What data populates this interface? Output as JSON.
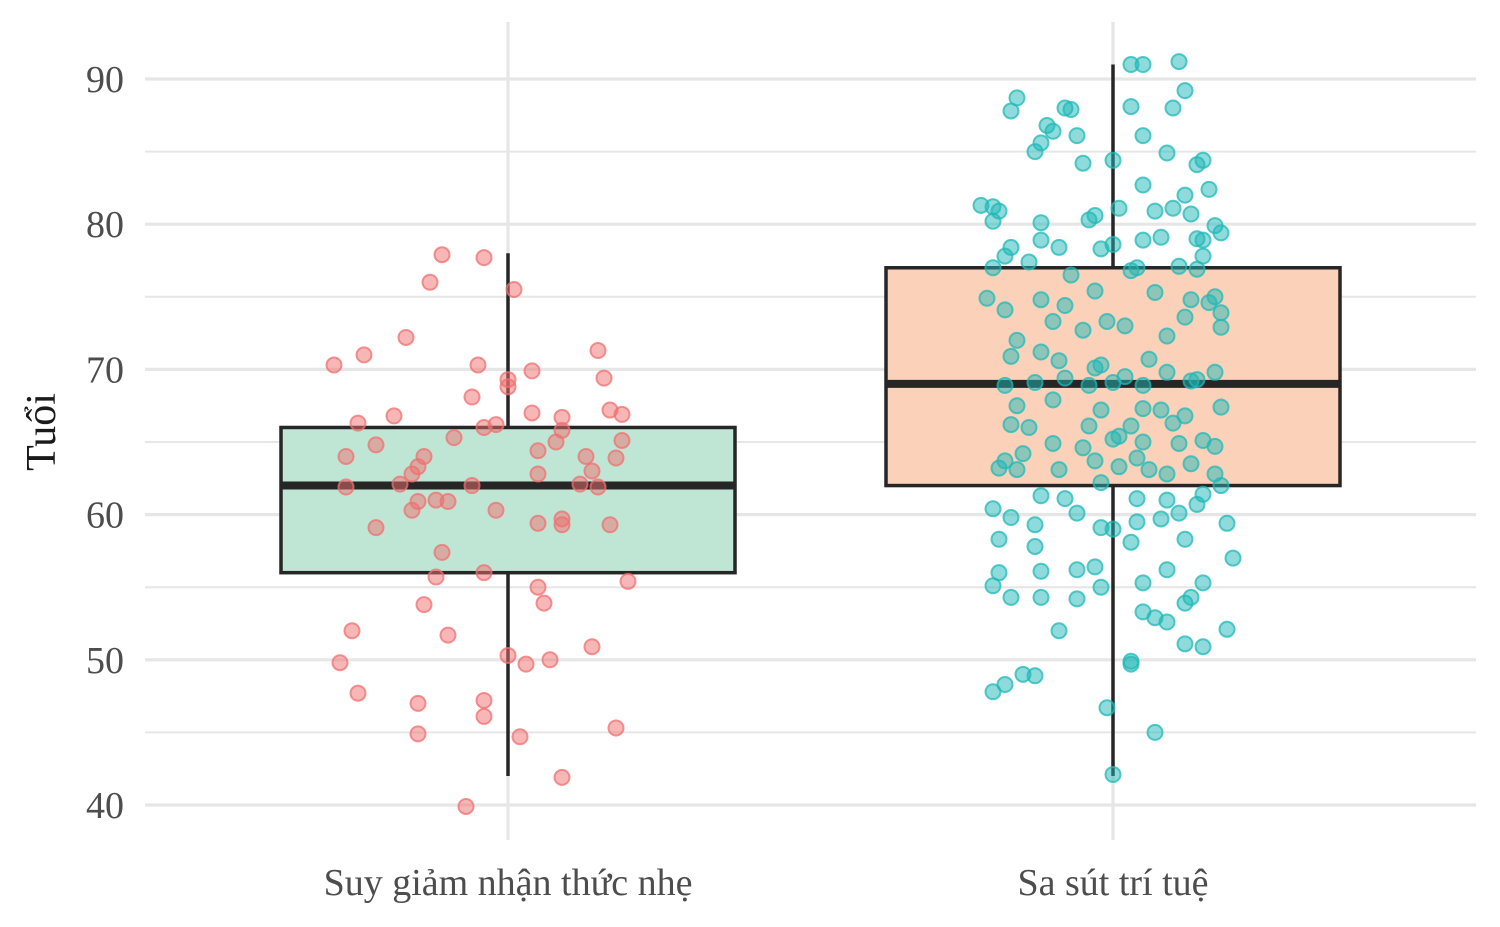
{
  "chart_data": {
    "type": "boxplot",
    "xlabel": "",
    "ylabel": "Tuổi",
    "ylim": [
      38,
      94
    ],
    "yticks": [
      40,
      50,
      60,
      70,
      80,
      90
    ],
    "grid": true,
    "legend": "none",
    "categories": [
      "Suy giảm nhận thức nhẹ",
      "Sa sút trí tuệ"
    ],
    "series": [
      {
        "box": {
          "min": 42,
          "q1": 56,
          "median": 62,
          "q3": 66,
          "max": 78
        },
        "box_fill": "#bfe6d5",
        "point_color": "#f07070",
        "points": [
          [
            -0.29,
            70.3
          ],
          [
            -0.24,
            71
          ],
          [
            -0.17,
            72.2
          ],
          [
            -0.11,
            77.9
          ],
          [
            -0.13,
            76
          ],
          [
            -0.04,
            77.7
          ],
          [
            0.01,
            75.5
          ],
          [
            -0.25,
            66.3
          ],
          [
            -0.19,
            66.8
          ],
          [
            -0.22,
            64.8
          ],
          [
            -0.27,
            64
          ],
          [
            -0.18,
            62.1
          ],
          [
            -0.27,
            61.9
          ],
          [
            -0.14,
            64
          ],
          [
            -0.09,
            65.3
          ],
          [
            -0.06,
            68.1
          ],
          [
            -0.04,
            66
          ],
          [
            -0.05,
            70.3
          ],
          [
            0.0,
            69.3
          ],
          [
            0.0,
            68.8
          ],
          [
            0.04,
            69.9
          ],
          [
            0.05,
            64.4
          ],
          [
            0.09,
            66.7
          ],
          [
            0.09,
            65.8
          ],
          [
            0.08,
            65
          ],
          [
            0.15,
            71.3
          ],
          [
            0.16,
            69.4
          ],
          [
            0.17,
            67.2
          ],
          [
            0.19,
            66.9
          ],
          [
            0.19,
            65.1
          ],
          [
            0.18,
            63.9
          ],
          [
            0.13,
            64
          ],
          [
            0.14,
            63
          ],
          [
            0.12,
            62.1
          ],
          [
            0.15,
            61.9
          ],
          [
            -0.15,
            63.3
          ],
          [
            -0.16,
            62.8
          ],
          [
            -0.15,
            60.9
          ],
          [
            -0.16,
            60.3
          ],
          [
            -0.12,
            61
          ],
          [
            -0.06,
            62
          ],
          [
            -0.1,
            60.9
          ],
          [
            -0.22,
            59.1
          ],
          [
            -0.02,
            60.3
          ],
          [
            0.05,
            59.4
          ],
          [
            0.09,
            59.3
          ],
          [
            0.09,
            59.7
          ],
          [
            0.17,
            59.3
          ],
          [
            0.05,
            62.8
          ],
          [
            -0.11,
            57.4
          ],
          [
            -0.12,
            55.7
          ],
          [
            -0.04,
            56
          ],
          [
            0.05,
            55
          ],
          [
            0.06,
            53.9
          ],
          [
            -0.14,
            53.8
          ],
          [
            0.2,
            55.4
          ],
          [
            -0.26,
            52
          ],
          [
            -0.1,
            51.7
          ],
          [
            -0.28,
            49.8
          ],
          [
            0.0,
            50.3
          ],
          [
            0.03,
            49.7
          ],
          [
            0.07,
            50
          ],
          [
            0.14,
            50.9
          ],
          [
            -0.25,
            47.7
          ],
          [
            -0.15,
            47
          ],
          [
            -0.04,
            47.2
          ],
          [
            -0.04,
            46.1
          ],
          [
            -0.15,
            44.9
          ],
          [
            0.02,
            44.7
          ],
          [
            0.18,
            45.3
          ],
          [
            0.09,
            41.9
          ],
          [
            -0.07,
            39.9
          ],
          [
            -0.02,
            66.2
          ],
          [
            0.04,
            67
          ]
        ]
      },
      {
        "box": {
          "min": 42,
          "q1": 62,
          "median": 69,
          "q3": 77,
          "max": 91
        },
        "box_fill": "#fbd2b9",
        "point_color": "#20b8b8",
        "points": [
          [
            0.03,
            91
          ],
          [
            0.05,
            91
          ],
          [
            0.11,
            91.2
          ],
          [
            -0.16,
            88.7
          ],
          [
            -0.17,
            87.8
          ],
          [
            -0.08,
            88
          ],
          [
            -0.07,
            87.9
          ],
          [
            0.03,
            88.1
          ],
          [
            0.1,
            88
          ],
          [
            0.12,
            89.2
          ],
          [
            -0.11,
            86.8
          ],
          [
            -0.1,
            86.4
          ],
          [
            -0.12,
            85.6
          ],
          [
            -0.13,
            85
          ],
          [
            -0.06,
            86.1
          ],
          [
            0.05,
            86.1
          ],
          [
            0.09,
            84.9
          ],
          [
            0.15,
            84.4
          ],
          [
            0.14,
            84.1
          ],
          [
            -0.05,
            84.2
          ],
          [
            0.0,
            84.4
          ],
          [
            0.05,
            82.7
          ],
          [
            0.16,
            82.4
          ],
          [
            0.12,
            82
          ],
          [
            -0.2,
            81.2
          ],
          [
            -0.22,
            81.3
          ],
          [
            -0.19,
            80.9
          ],
          [
            -0.2,
            80.2
          ],
          [
            -0.12,
            80.1
          ],
          [
            -0.04,
            80.3
          ],
          [
            -0.03,
            80.6
          ],
          [
            0.01,
            81.1
          ],
          [
            0.07,
            80.9
          ],
          [
            0.1,
            81.1
          ],
          [
            0.13,
            80.7
          ],
          [
            0.17,
            79.9
          ],
          [
            0.18,
            79.4
          ],
          [
            0.15,
            78.9
          ],
          [
            0.14,
            79
          ],
          [
            0.08,
            79.1
          ],
          [
            0.05,
            78.9
          ],
          [
            0.0,
            78.6
          ],
          [
            -0.09,
            78.4
          ],
          [
            -0.12,
            78.9
          ],
          [
            -0.17,
            78.4
          ],
          [
            -0.18,
            77.8
          ],
          [
            -0.2,
            77
          ],
          [
            -0.14,
            77.4
          ],
          [
            -0.02,
            78.3
          ],
          [
            0.04,
            77
          ],
          [
            0.11,
            77.1
          ],
          [
            0.15,
            77.8
          ],
          [
            0.14,
            76.9
          ],
          [
            -0.07,
            76.5
          ],
          [
            0.03,
            76.8
          ],
          [
            -0.21,
            74.9
          ],
          [
            -0.18,
            74.1
          ],
          [
            -0.12,
            74.8
          ],
          [
            -0.08,
            74.4
          ],
          [
            -0.03,
            75.4
          ],
          [
            0.07,
            75.3
          ],
          [
            0.13,
            74.8
          ],
          [
            0.16,
            74.6
          ],
          [
            0.17,
            75
          ],
          [
            0.18,
            73.9
          ],
          [
            0.18,
            72.9
          ],
          [
            0.12,
            73.6
          ],
          [
            0.09,
            72.3
          ],
          [
            0.02,
            73
          ],
          [
            -0.01,
            73.3
          ],
          [
            -0.05,
            72.7
          ],
          [
            -0.1,
            73.3
          ],
          [
            -0.16,
            72
          ],
          [
            -0.17,
            70.9
          ],
          [
            -0.12,
            71.2
          ],
          [
            -0.09,
            70.6
          ],
          [
            -0.02,
            70.3
          ],
          [
            0.06,
            70.7
          ],
          [
            0.09,
            69.8
          ],
          [
            0.13,
            69.2
          ],
          [
            0.17,
            69.8
          ],
          [
            0.14,
            69.3
          ],
          [
            0.05,
            68.9
          ],
          [
            0.0,
            69.1
          ],
          [
            -0.04,
            68.9
          ],
          [
            -0.08,
            69.4
          ],
          [
            -0.13,
            69.1
          ],
          [
            -0.18,
            68.9
          ],
          [
            -0.16,
            67.5
          ],
          [
            -0.1,
            67.9
          ],
          [
            -0.02,
            67.2
          ],
          [
            0.05,
            67.3
          ],
          [
            0.08,
            67.2
          ],
          [
            0.12,
            66.8
          ],
          [
            0.18,
            67.4
          ],
          [
            -0.17,
            66.2
          ],
          [
            -0.14,
            66
          ],
          [
            -0.04,
            66.1
          ],
          [
            0.03,
            66.1
          ],
          [
            0.1,
            66.3
          ],
          [
            0.15,
            65.1
          ],
          [
            0.17,
            64.7
          ],
          [
            0.11,
            64.9
          ],
          [
            0.05,
            65
          ],
          [
            0.0,
            65.2
          ],
          [
            -0.05,
            64.6
          ],
          [
            -0.1,
            64.9
          ],
          [
            -0.15,
            64.2
          ],
          [
            -0.18,
            63.7
          ],
          [
            -0.19,
            63.2
          ],
          [
            -0.16,
            63.1
          ],
          [
            -0.09,
            63.1
          ],
          [
            -0.03,
            63.7
          ],
          [
            0.01,
            63.3
          ],
          [
            0.04,
            63.9
          ],
          [
            0.06,
            63.1
          ],
          [
            0.09,
            62.8
          ],
          [
            0.13,
            63.5
          ],
          [
            0.17,
            62.8
          ],
          [
            0.18,
            62
          ],
          [
            0.15,
            61.4
          ],
          [
            0.09,
            61
          ],
          [
            0.04,
            61.1
          ],
          [
            -0.02,
            62.2
          ],
          [
            -0.08,
            61.1
          ],
          [
            -0.12,
            61.3
          ],
          [
            -0.2,
            60.4
          ],
          [
            -0.17,
            59.8
          ],
          [
            -0.13,
            59.3
          ],
          [
            -0.06,
            60.1
          ],
          [
            -0.02,
            59.1
          ],
          [
            0.0,
            59
          ],
          [
            0.04,
            59.5
          ],
          [
            0.08,
            59.7
          ],
          [
            0.11,
            60.1
          ],
          [
            0.14,
            60.7
          ],
          [
            0.19,
            59.4
          ],
          [
            -0.19,
            58.3
          ],
          [
            -0.13,
            57.8
          ],
          [
            0.03,
            58.1
          ],
          [
            0.12,
            58.3
          ],
          [
            0.2,
            57
          ],
          [
            -0.19,
            56
          ],
          [
            -0.12,
            56.1
          ],
          [
            -0.06,
            56.2
          ],
          [
            -0.03,
            56.4
          ],
          [
            0.09,
            56.2
          ],
          [
            -0.2,
            55.1
          ],
          [
            0.05,
            55.3
          ],
          [
            0.15,
            55.3
          ],
          [
            -0.17,
            54.3
          ],
          [
            -0.12,
            54.3
          ],
          [
            -0.06,
            54.2
          ],
          [
            -0.02,
            55
          ],
          [
            0.05,
            53.3
          ],
          [
            0.12,
            53.9
          ],
          [
            0.13,
            54.3
          ],
          [
            0.07,
            52.9
          ],
          [
            0.09,
            52.6
          ],
          [
            -0.09,
            52
          ],
          [
            0.19,
            52.1
          ],
          [
            0.12,
            51.1
          ],
          [
            0.15,
            50.9
          ],
          [
            0.03,
            49.9
          ],
          [
            -0.13,
            48.9
          ],
          [
            -0.15,
            49
          ],
          [
            -0.18,
            48.3
          ],
          [
            -0.2,
            47.8
          ],
          [
            0.03,
            49.7
          ],
          [
            -0.01,
            46.7
          ],
          [
            0.07,
            45
          ],
          [
            0.0,
            42.1
          ],
          [
            0.02,
            69.5
          ],
          [
            0.01,
            65.4
          ],
          [
            -0.03,
            70.1
          ]
        ]
      }
    ]
  }
}
